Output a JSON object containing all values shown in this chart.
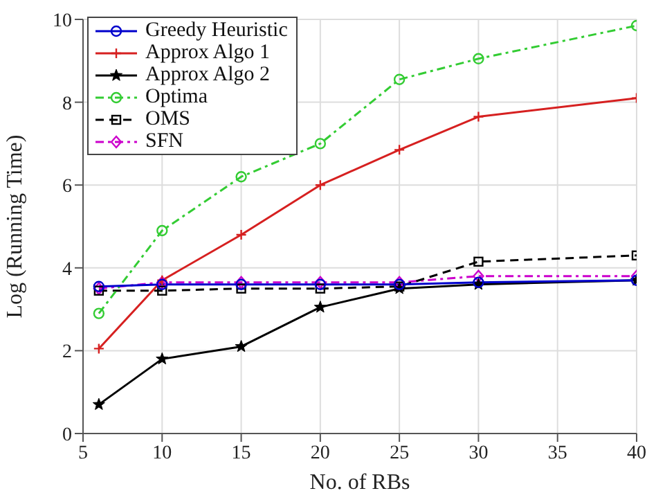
{
  "chart_data": {
    "type": "line",
    "xlabel": "No. of RBs",
    "ylabel": "Log (Running Time)",
    "xlim": [
      5,
      40
    ],
    "xticks": [
      5,
      10,
      15,
      20,
      25,
      30,
      35,
      40
    ],
    "ylim": [
      0,
      10
    ],
    "yticks": [
      0,
      2,
      4,
      6,
      8,
      10
    ],
    "grid": true,
    "legend": "top left",
    "x": [
      6,
      10,
      15,
      20,
      25,
      30,
      40
    ],
    "series": [
      {
        "name": "Greedy Heuristic",
        "color": "#0000cc",
        "marker": "circle",
        "line_style": "solid",
        "values": [
          3.55,
          3.6,
          3.6,
          3.6,
          3.6,
          3.65,
          3.7
        ]
      },
      {
        "name": "Approx Algo 1",
        "color": "#d62020",
        "marker": "cross",
        "line_style": "solid",
        "values": [
          2.05,
          3.7,
          4.8,
          6.0,
          6.85,
          7.65,
          8.1
        ]
      },
      {
        "name": "Approx Algo 2",
        "color": "#000000",
        "marker": "star",
        "line_style": "solid",
        "values": [
          0.7,
          1.8,
          2.1,
          3.05,
          3.5,
          3.6,
          3.7
        ]
      },
      {
        "name": "Optima",
        "color": "#33cc33",
        "marker": "circle",
        "line_style": "dashdot",
        "values": [
          2.9,
          4.9,
          6.2,
          7.0,
          8.55,
          9.05,
          9.85
        ]
      },
      {
        "name": "OMS",
        "color": "#000000",
        "marker": "square",
        "line_style": "dashed",
        "values": [
          3.45,
          3.45,
          3.5,
          3.5,
          3.55,
          4.15,
          4.3
        ]
      },
      {
        "name": "SFN",
        "color": "#cc00cc",
        "marker": "diamond",
        "line_style": "dashdot",
        "values": [
          3.5,
          3.65,
          3.65,
          3.65,
          3.65,
          3.8,
          3.8
        ]
      }
    ]
  }
}
